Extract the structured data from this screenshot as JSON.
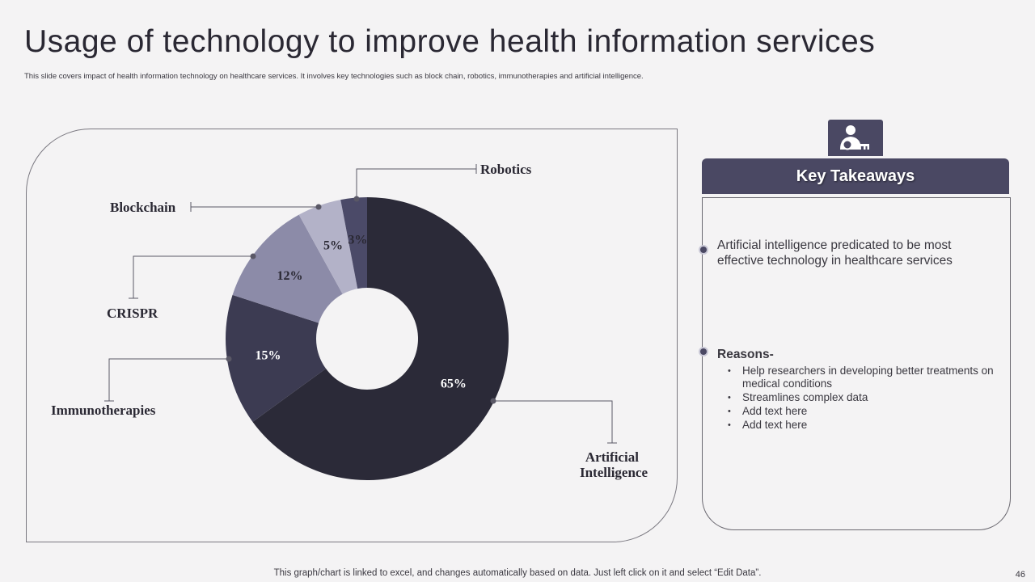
{
  "slide": {
    "title": "Usage of technology to improve health information services",
    "subtitle": "This slide covers impact of health information technology on healthcare services. It involves key technologies such as block chain, robotics, immunotherapies and artificial intelligence.",
    "footer_note": "This graph/chart is linked to excel, and changes automatically based on data. Just left click on it and select “Edit Data”.",
    "page_number": "46"
  },
  "chart_data": {
    "type": "pie",
    "variant": "donut",
    "categories": [
      "Artificial Intelligence",
      "Immunotherapies",
      "CRISPR",
      "Blockchain",
      "Robotics"
    ],
    "values": [
      65,
      15,
      12,
      5,
      3
    ],
    "value_labels": [
      "65%",
      "15%",
      "12%",
      "5%",
      "3%"
    ],
    "colors": [
      "#2b2a38",
      "#3c3b52",
      "#8c8ba8",
      "#b3b2c8",
      "#4b4a68"
    ],
    "label_colors": [
      "#ffffff",
      "#ffffff",
      "#2a2833",
      "#2a2833",
      "#2a2833"
    ],
    "start_angle_deg": 0,
    "direction": "clockwise"
  },
  "takeaways": {
    "heading": "Key Takeaways",
    "icon": "user-key-icon",
    "accent_color": "#4a4863",
    "main_point": "Artificial intelligence predicated to be most effective technology in healthcare services",
    "reasons_title": "Reasons-",
    "reasons": [
      "Help researchers in developing better treatments on medical conditions",
      "Streamlines complex data",
      "Add text here",
      "Add text here"
    ]
  }
}
